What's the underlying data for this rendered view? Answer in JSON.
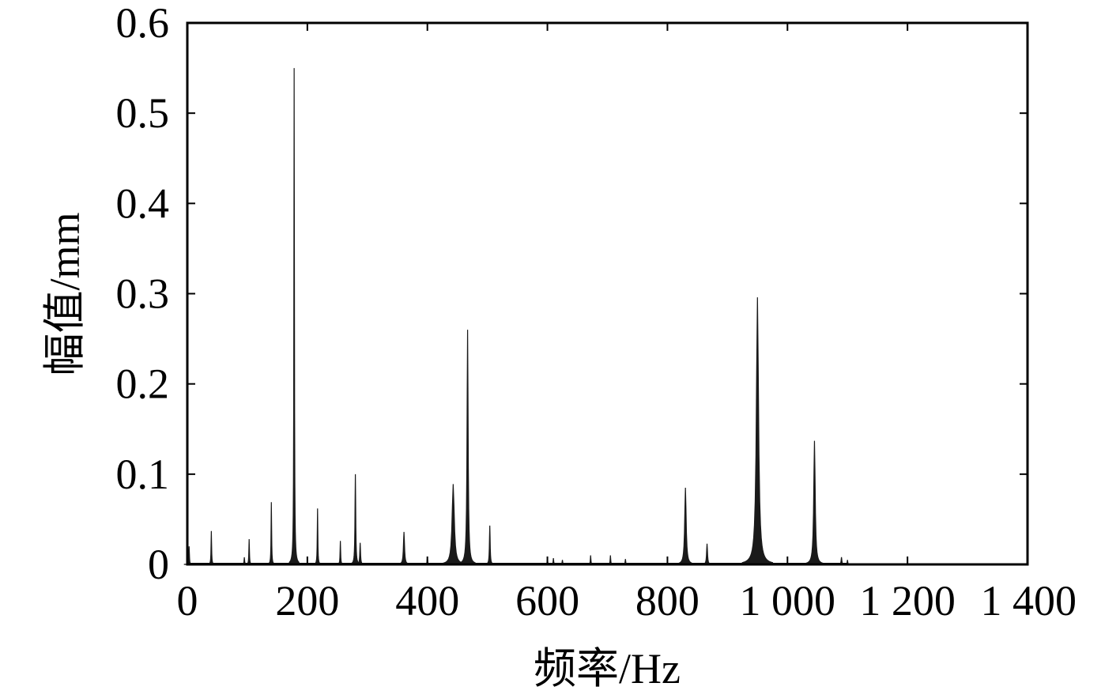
{
  "chart_data": {
    "type": "line",
    "title": "",
    "xlabel": "频率/Hz",
    "ylabel": "幅值/mm",
    "xlim": [
      0,
      1400
    ],
    "ylim": [
      0,
      0.6
    ],
    "x_ticks": [
      0,
      200,
      400,
      600,
      800,
      1000,
      1200,
      1400
    ],
    "x_tick_labels": [
      "0",
      "200",
      "400",
      "600",
      "800",
      "1 000",
      "1 200",
      "1 400"
    ],
    "y_ticks": [
      0,
      0.1,
      0.2,
      0.3,
      0.4,
      0.5,
      0.6
    ],
    "y_tick_labels": [
      "0",
      "0.1",
      "0.2",
      "0.3",
      "0.4",
      "0.5",
      "0.6"
    ],
    "grid": false,
    "color": "#1a1a1a",
    "peaks": [
      {
        "x": 3,
        "y": 0.02,
        "width": 1
      },
      {
        "x": 40,
        "y": 0.037,
        "width": 1.5
      },
      {
        "x": 95,
        "y": 0.008,
        "width": 1
      },
      {
        "x": 103,
        "y": 0.028,
        "width": 1.5
      },
      {
        "x": 140,
        "y": 0.069,
        "width": 1.5
      },
      {
        "x": 178,
        "y": 0.55,
        "width": 1.5
      },
      {
        "x": 217,
        "y": 0.062,
        "width": 1.5
      },
      {
        "x": 255,
        "y": 0.026,
        "width": 1.5
      },
      {
        "x": 280,
        "y": 0.1,
        "width": 2
      },
      {
        "x": 288,
        "y": 0.024,
        "width": 2
      },
      {
        "x": 361,
        "y": 0.036,
        "width": 3
      },
      {
        "x": 400,
        "y": 0.008,
        "width": 1
      },
      {
        "x": 443,
        "y": 0.089,
        "width": 6
      },
      {
        "x": 467,
        "y": 0.26,
        "width": 3
      },
      {
        "x": 504,
        "y": 0.043,
        "width": 2
      },
      {
        "x": 600,
        "y": 0.006,
        "width": 1
      },
      {
        "x": 610,
        "y": 0.007,
        "width": 1
      },
      {
        "x": 625,
        "y": 0.005,
        "width": 1
      },
      {
        "x": 672,
        "y": 0.01,
        "width": 1.5
      },
      {
        "x": 705,
        "y": 0.01,
        "width": 1.5
      },
      {
        "x": 730,
        "y": 0.006,
        "width": 1
      },
      {
        "x": 830,
        "y": 0.085,
        "width": 4
      },
      {
        "x": 866,
        "y": 0.023,
        "width": 2.5
      },
      {
        "x": 950,
        "y": 0.296,
        "width": 6
      },
      {
        "x": 1045,
        "y": 0.137,
        "width": 4
      },
      {
        "x": 1090,
        "y": 0.008,
        "width": 2
      },
      {
        "x": 1100,
        "y": 0.005,
        "width": 1
      }
    ]
  }
}
